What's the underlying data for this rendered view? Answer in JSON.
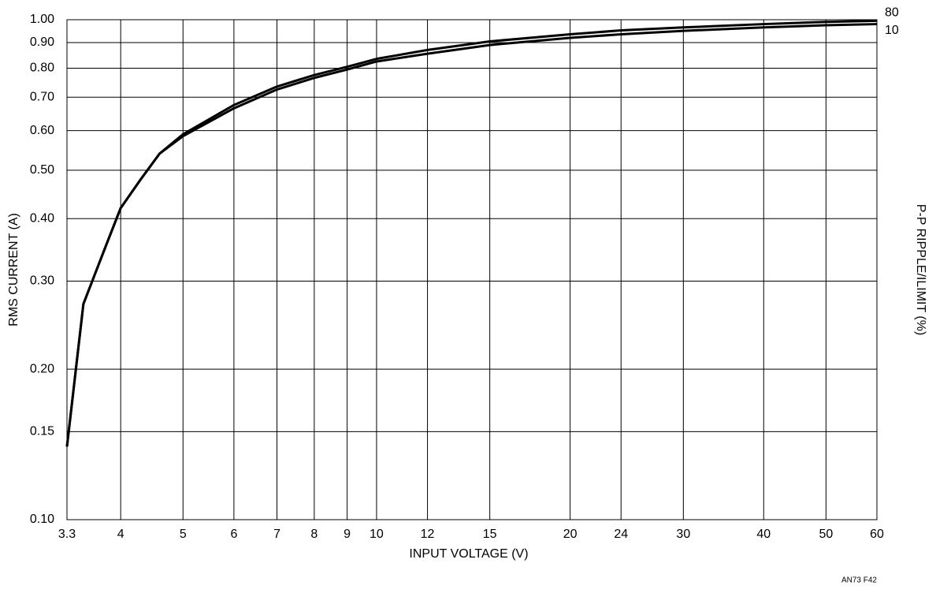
{
  "chart_data": {
    "type": "line",
    "xlabel": "INPUT VOLTAGE (V)",
    "ylabel": "RMS CURRENT (A)",
    "y2label": "P-P RIPPLE/ILIMIT (%)",
    "note": "AN73 F42",
    "x": [
      3.3,
      3.5,
      3.8,
      4,
      4.3,
      4.6,
      5,
      6,
      7,
      8,
      9,
      10,
      12,
      15,
      20,
      24,
      30,
      40,
      50,
      60
    ],
    "series": [
      {
        "name": "80",
        "color": "#000000",
        "values": [
          0.14,
          0.27,
          0.355,
          0.42,
          0.48,
          0.54,
          0.59,
          0.675,
          0.735,
          0.775,
          0.805,
          0.835,
          0.87,
          0.905,
          0.935,
          0.952,
          0.965,
          0.98,
          0.99,
          0.995
        ]
      },
      {
        "name": "10",
        "color": "#000000",
        "values": [
          0.14,
          0.27,
          0.355,
          0.42,
          0.48,
          0.54,
          0.585,
          0.665,
          0.725,
          0.765,
          0.795,
          0.825,
          0.855,
          0.89,
          0.92,
          0.935,
          0.95,
          0.965,
          0.975,
          0.98
        ]
      }
    ],
    "xlim": [
      3.3,
      60
    ],
    "ylim": [
      0.1,
      1
    ],
    "xticks": [
      3.3,
      4,
      5,
      6,
      7,
      8,
      9,
      10,
      12,
      15,
      20,
      24,
      30,
      40,
      50,
      60
    ],
    "yticks": [
      {
        "value": 0.1,
        "label": "0.10"
      },
      {
        "value": 0.15,
        "label": "0.15"
      },
      {
        "value": 0.2,
        "label": "0.20"
      },
      {
        "value": 0.3,
        "label": "0.30"
      },
      {
        "value": 0.4,
        "label": "0.40"
      },
      {
        "value": 0.5,
        "label": "0.50"
      },
      {
        "value": 0.6,
        "label": "0.60"
      },
      {
        "value": 0.7,
        "label": "0.70"
      },
      {
        "value": 0.8,
        "label": "0.80"
      },
      {
        "value": 0.9,
        "label": "0.90"
      },
      {
        "value": 1,
        "label": "1.00"
      }
    ],
    "xscale": "log",
    "yscale": "log",
    "grid": true
  }
}
